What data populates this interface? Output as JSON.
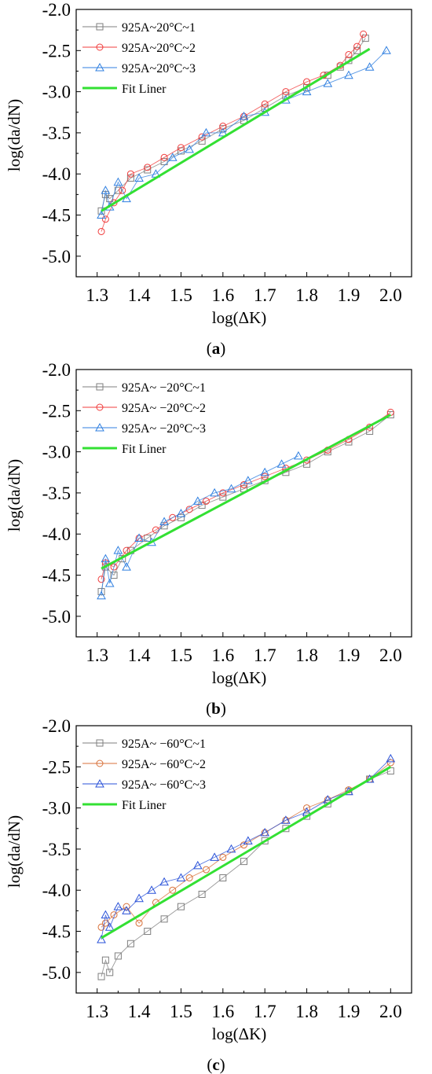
{
  "chart_data": [
    {
      "type": "scatter",
      "panel_label": "a",
      "xlabel": "log(ΔK)",
      "ylabel": "log(da/dN)",
      "xlim": [
        1.25,
        2.05
      ],
      "ylim": [
        -5.25,
        -2.0
      ],
      "xticks": [
        "1.3",
        "1.4",
        "1.5",
        "1.6",
        "1.7",
        "1.8",
        "1.9",
        "2.0"
      ],
      "yticks": [
        "-2.0",
        "-2.5",
        "-3.0",
        "-3.5",
        "-4.0",
        "-4.5",
        "-5.0"
      ],
      "legend_position": "top-left",
      "series": [
        {
          "name": "925A~20°C~1",
          "marker": "square",
          "color": "#7f7f7f",
          "x": [
            1.31,
            1.32,
            1.33,
            1.35,
            1.38,
            1.42,
            1.46,
            1.5,
            1.55,
            1.6,
            1.65,
            1.7,
            1.75,
            1.8,
            1.85,
            1.88,
            1.9,
            1.92,
            1.94
          ],
          "y": [
            -4.45,
            -4.25,
            -4.3,
            -4.2,
            -4.05,
            -3.95,
            -3.85,
            -3.72,
            -3.6,
            -3.45,
            -3.35,
            -3.2,
            -3.05,
            -2.95,
            -2.8,
            -2.7,
            -2.62,
            -2.5,
            -2.35
          ]
        },
        {
          "name": "925A~20°C~2",
          "marker": "circle",
          "color": "#f03c3c",
          "x": [
            1.31,
            1.32,
            1.34,
            1.36,
            1.38,
            1.42,
            1.46,
            1.5,
            1.55,
            1.6,
            1.65,
            1.7,
            1.75,
            1.8,
            1.84,
            1.88,
            1.9,
            1.92,
            1.935
          ],
          "y": [
            -4.7,
            -4.55,
            -4.35,
            -4.2,
            -4.0,
            -3.92,
            -3.8,
            -3.68,
            -3.55,
            -3.42,
            -3.3,
            -3.15,
            -3.0,
            -2.88,
            -2.8,
            -2.68,
            -2.55,
            -2.45,
            -2.3
          ]
        },
        {
          "name": "925A~20°C~3",
          "marker": "triangle",
          "color": "#2f7fe0",
          "x": [
            1.31,
            1.32,
            1.33,
            1.35,
            1.37,
            1.4,
            1.44,
            1.48,
            1.52,
            1.56,
            1.6,
            1.65,
            1.7,
            1.75,
            1.8,
            1.85,
            1.9,
            1.95,
            1.99
          ],
          "y": [
            -4.5,
            -4.2,
            -4.4,
            -4.1,
            -4.3,
            -4.05,
            -4.0,
            -3.8,
            -3.7,
            -3.5,
            -3.5,
            -3.3,
            -3.25,
            -3.1,
            -3.0,
            -2.9,
            -2.8,
            -2.7,
            -2.5
          ]
        },
        {
          "name": "Fit Liner",
          "marker": "line",
          "color": "#33e033",
          "x": [
            1.31,
            1.95
          ],
          "y": [
            -4.45,
            -2.48
          ]
        }
      ]
    },
    {
      "type": "scatter",
      "panel_label": "b",
      "xlabel": "log(ΔK)",
      "ylabel": "log(da/dN)",
      "xlim": [
        1.25,
        2.05
      ],
      "ylim": [
        -5.25,
        -2.0
      ],
      "xticks": [
        "1.3",
        "1.4",
        "1.5",
        "1.6",
        "1.7",
        "1.8",
        "1.9",
        "2.0"
      ],
      "yticks": [
        "-2.0",
        "-2.5",
        "-3.0",
        "-3.5",
        "-4.0",
        "-4.5",
        "-5.0"
      ],
      "legend_position": "top-left",
      "series": [
        {
          "name": "925A~ −20°C~1",
          "marker": "square",
          "color": "#7f7f7f",
          "x": [
            1.31,
            1.32,
            1.34,
            1.36,
            1.38,
            1.42,
            1.46,
            1.5,
            1.55,
            1.6,
            1.65,
            1.7,
            1.75,
            1.8,
            1.85,
            1.9,
            1.95,
            2.0
          ],
          "y": [
            -4.7,
            -4.4,
            -4.5,
            -4.3,
            -4.2,
            -4.05,
            -3.9,
            -3.8,
            -3.65,
            -3.55,
            -3.45,
            -3.35,
            -3.25,
            -3.15,
            -3.0,
            -2.88,
            -2.75,
            -2.55
          ]
        },
        {
          "name": "925A~ −20°C~2",
          "marker": "circle",
          "color": "#f03c3c",
          "x": [
            1.31,
            1.32,
            1.34,
            1.37,
            1.4,
            1.44,
            1.48,
            1.52,
            1.56,
            1.6,
            1.65,
            1.7,
            1.75,
            1.8,
            1.85,
            1.9,
            1.95,
            2.0
          ],
          "y": [
            -4.55,
            -4.35,
            -4.4,
            -4.2,
            -4.05,
            -3.95,
            -3.8,
            -3.7,
            -3.6,
            -3.5,
            -3.4,
            -3.3,
            -3.2,
            -3.1,
            -2.98,
            -2.85,
            -2.7,
            -2.52
          ]
        },
        {
          "name": "925A~ −20°C~3",
          "marker": "triangle",
          "color": "#2f7fe0",
          "x": [
            1.31,
            1.32,
            1.33,
            1.35,
            1.37,
            1.4,
            1.43,
            1.46,
            1.5,
            1.54,
            1.58,
            1.62,
            1.66,
            1.7,
            1.74,
            1.78
          ],
          "y": [
            -4.75,
            -4.3,
            -4.6,
            -4.2,
            -4.4,
            -4.05,
            -4.1,
            -3.85,
            -3.75,
            -3.6,
            -3.5,
            -3.45,
            -3.35,
            -3.25,
            -3.15,
            -3.05
          ]
        },
        {
          "name": "Fit Liner",
          "marker": "line",
          "color": "#33e033",
          "x": [
            1.31,
            2.0
          ],
          "y": [
            -4.42,
            -2.55
          ]
        }
      ]
    },
    {
      "type": "scatter",
      "panel_label": "c",
      "xlabel": "log(ΔK)",
      "ylabel": "log(da/dN)",
      "xlim": [
        1.25,
        2.05
      ],
      "ylim": [
        -5.25,
        -2.0
      ],
      "xticks": [
        "1.3",
        "1.4",
        "1.5",
        "1.6",
        "1.7",
        "1.8",
        "1.9",
        "2.0"
      ],
      "yticks": [
        "-2.0",
        "-2.5",
        "-3.0",
        "-3.5",
        "-4.0",
        "-4.5",
        "-5.0"
      ],
      "legend_position": "top-left",
      "series": [
        {
          "name": "925A~ −60°C~1",
          "marker": "square",
          "color": "#7f7f7f",
          "x": [
            1.31,
            1.32,
            1.33,
            1.35,
            1.38,
            1.42,
            1.46,
            1.5,
            1.55,
            1.6,
            1.65,
            1.7,
            1.75,
            1.8,
            1.85,
            1.9,
            1.95,
            2.0
          ],
          "y": [
            -5.05,
            -4.85,
            -5.0,
            -4.8,
            -4.65,
            -4.5,
            -4.35,
            -4.2,
            -4.05,
            -3.85,
            -3.65,
            -3.4,
            -3.25,
            -3.1,
            -2.95,
            -2.8,
            -2.65,
            -2.55
          ]
        },
        {
          "name": "925A~ −60°C~2",
          "marker": "circle",
          "color": "#d8713a",
          "x": [
            1.31,
            1.32,
            1.34,
            1.37,
            1.4,
            1.44,
            1.48,
            1.52,
            1.56,
            1.6,
            1.65,
            1.7,
            1.75,
            1.8,
            1.85,
            1.9,
            1.95,
            2.0
          ],
          "y": [
            -4.45,
            -4.4,
            -4.3,
            -4.2,
            -4.4,
            -4.15,
            -4.0,
            -3.85,
            -3.75,
            -3.6,
            -3.45,
            -3.3,
            -3.15,
            -3.0,
            -2.9,
            -2.78,
            -2.65,
            -2.45
          ]
        },
        {
          "name": "925A~ −60°C~3",
          "marker": "triangle",
          "color": "#2a52d8",
          "x": [
            1.31,
            1.32,
            1.33,
            1.35,
            1.37,
            1.4,
            1.43,
            1.46,
            1.5,
            1.54,
            1.58,
            1.62,
            1.66,
            1.7,
            1.75,
            1.8,
            1.85,
            1.9,
            1.95,
            2.0
          ],
          "y": [
            -4.6,
            -4.3,
            -4.45,
            -4.2,
            -4.25,
            -4.1,
            -4.0,
            -3.9,
            -3.85,
            -3.7,
            -3.6,
            -3.5,
            -3.4,
            -3.3,
            -3.15,
            -3.05,
            -2.9,
            -2.8,
            -2.65,
            -2.4
          ]
        },
        {
          "name": "Fit Liner",
          "marker": "line",
          "color": "#33e033",
          "x": [
            1.31,
            2.0
          ],
          "y": [
            -4.58,
            -2.5
          ]
        }
      ]
    }
  ]
}
